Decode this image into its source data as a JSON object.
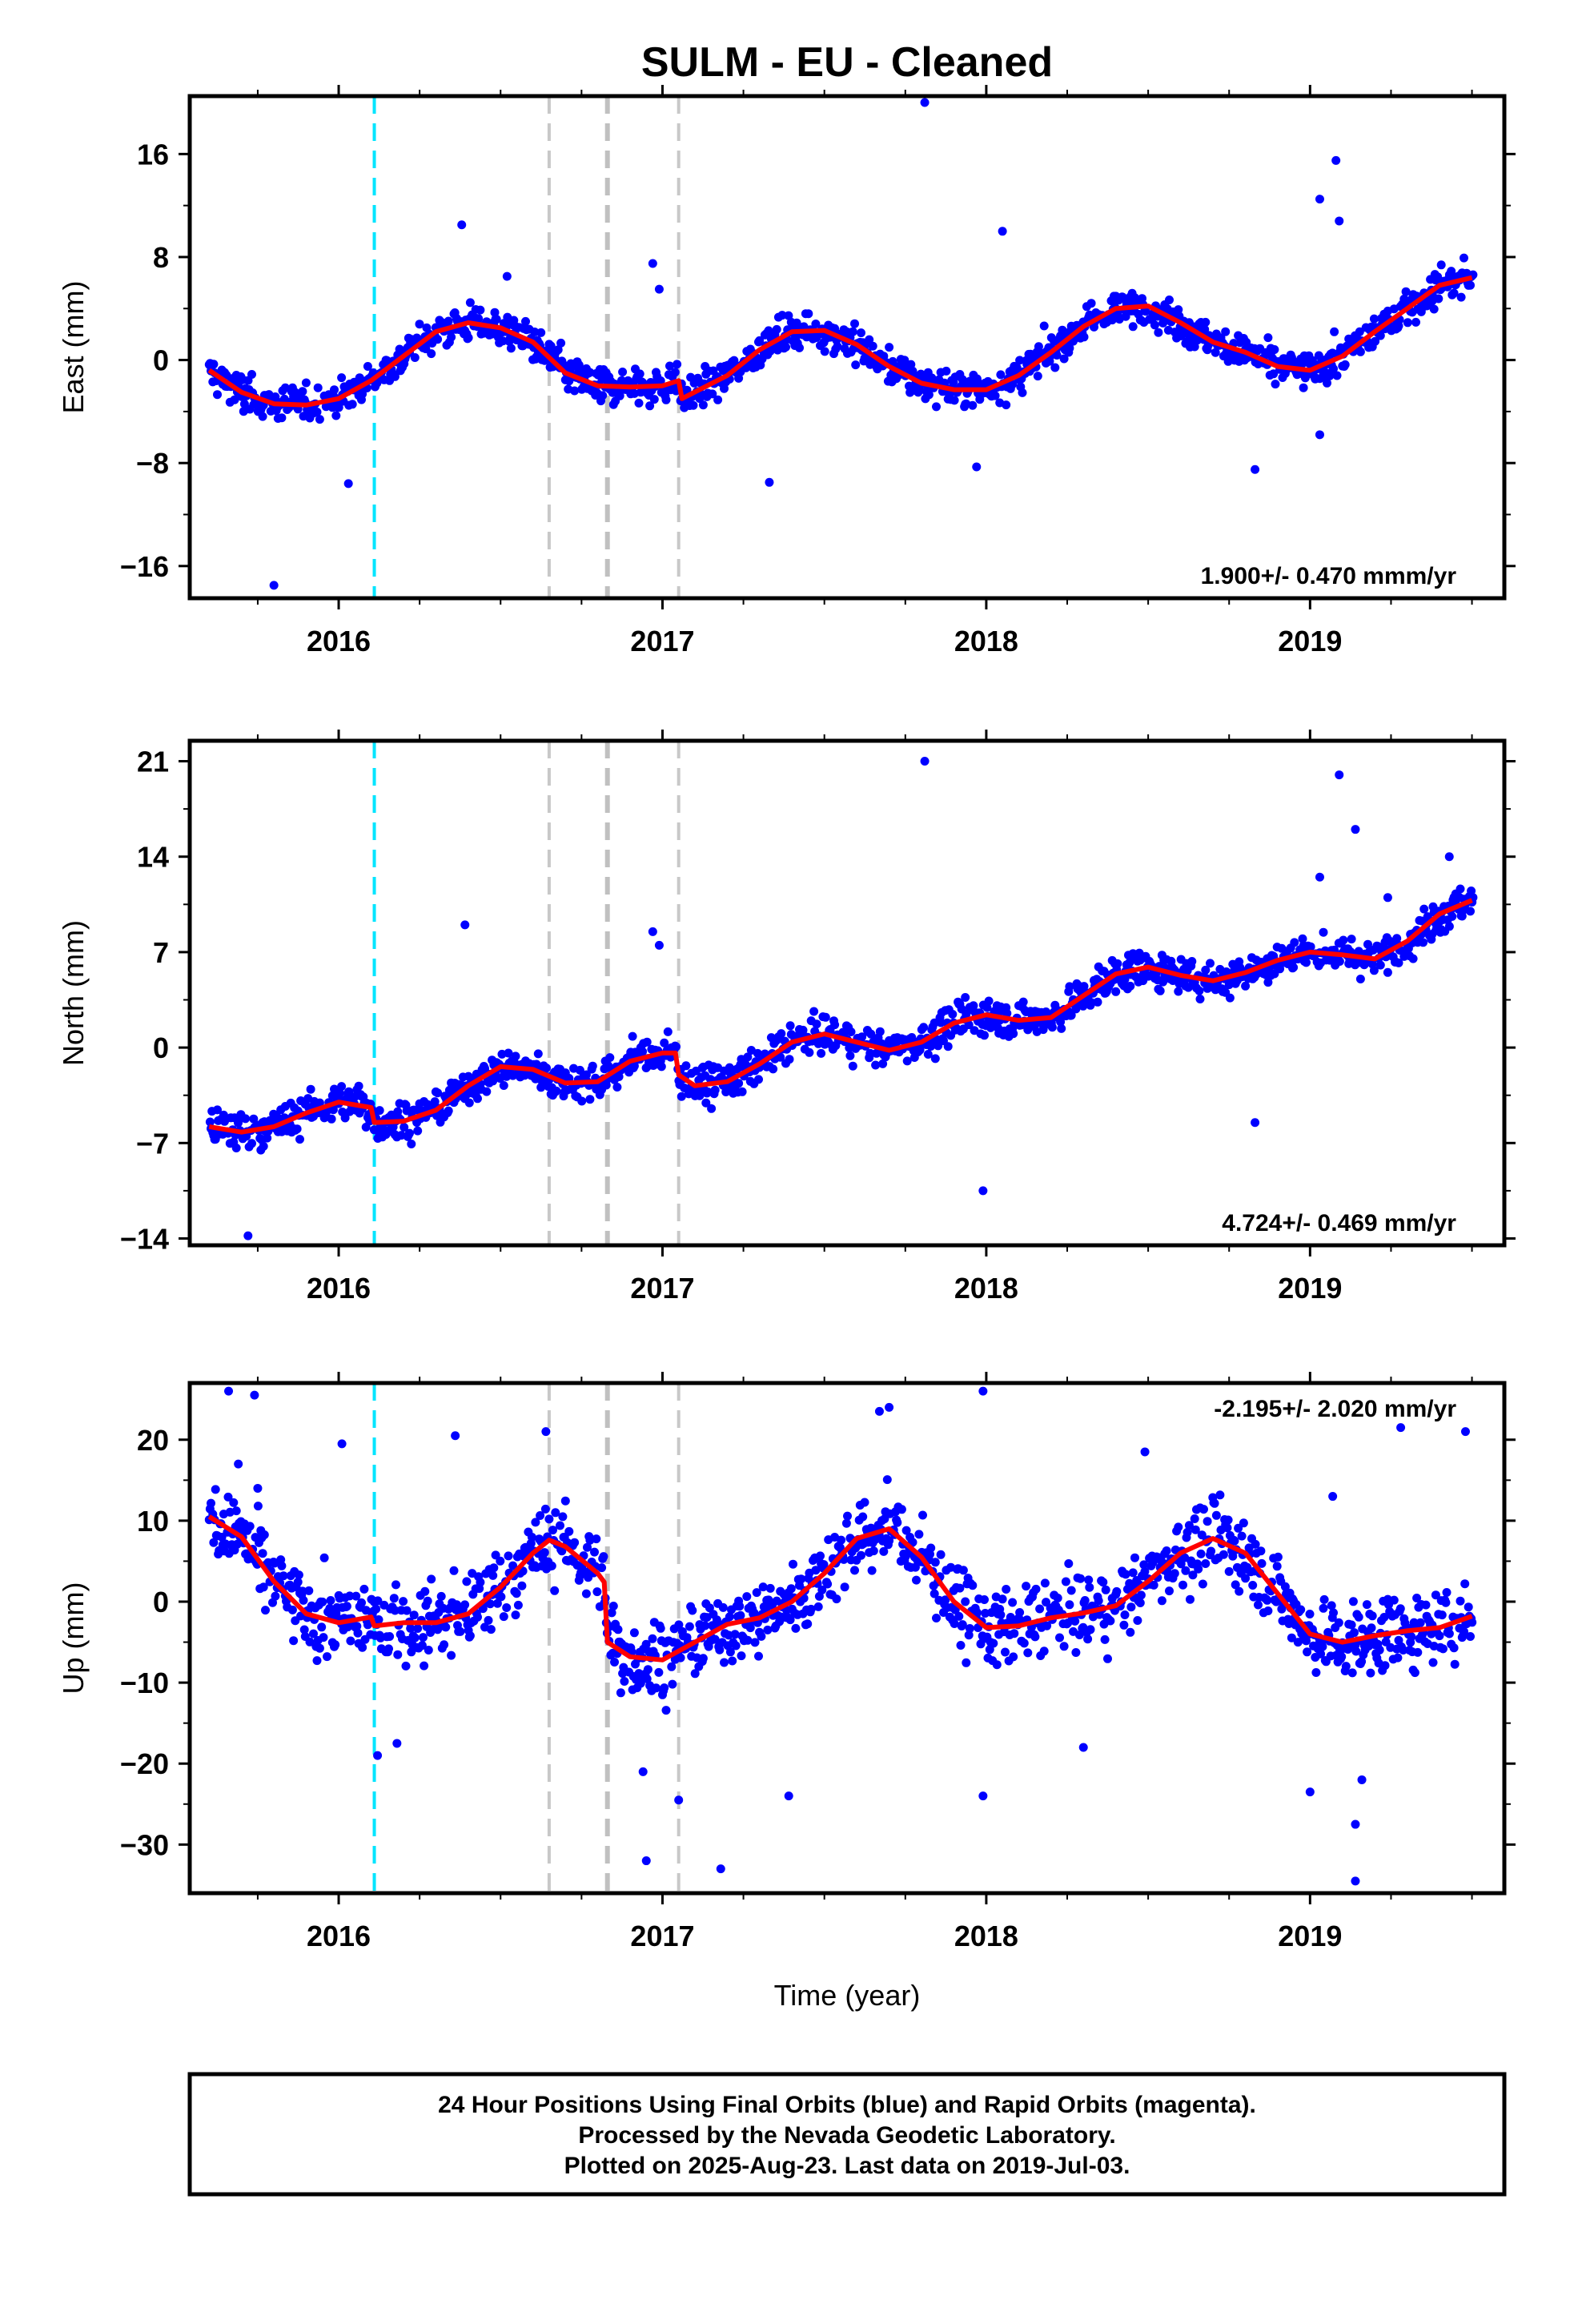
{
  "chart_data": {
    "type": "scatter",
    "title": "SULM  - EU - Cleaned",
    "xlabel": "Time (year)",
    "xlim": [
      2015.54,
      2019.6
    ],
    "xticks": [
      2016,
      2017,
      2018,
      2019
    ],
    "xtick_labels": [
      "2016",
      "2017",
      "2018",
      "2019"
    ],
    "event_lines": [
      {
        "year": 2016.11,
        "color": "#00e5ff"
      },
      {
        "year": 2016.65,
        "color": "#c8c8c8"
      },
      {
        "year": 2016.83,
        "color": "#c0c0c0"
      },
      {
        "year": 2017.05,
        "color": "#c8c8c8"
      }
    ],
    "colors": {
      "observations": "#0000ff",
      "model": "#ff0000"
    },
    "panels": [
      {
        "name": "east",
        "ylabel": "East (mm)",
        "ylim": [
          -18.5,
          20.5
        ],
        "yticks": [
          -16,
          -8,
          0,
          8,
          16
        ],
        "ytick_labels": [
          "−16",
          "−8",
          "0",
          "8",
          "16"
        ],
        "rate_label": "1.900+/- 0.470 mmm/yr",
        "rate_position": "bottom-right",
        "model": {
          "x": [
            2015.6,
            2015.7,
            2015.8,
            2015.9,
            2016.0,
            2016.1,
            2016.2,
            2016.3,
            2016.4,
            2016.5,
            2016.6,
            2016.7,
            2016.8,
            2016.9,
            2017.0,
            2017.05,
            2017.06,
            2017.2,
            2017.3,
            2017.4,
            2017.5,
            2017.6,
            2017.7,
            2017.8,
            2017.9,
            2018.0,
            2018.1,
            2018.2,
            2018.3,
            2018.4,
            2018.5,
            2018.6,
            2018.7,
            2018.8,
            2018.9,
            2019.0,
            2019.1,
            2019.2,
            2019.3,
            2019.4,
            2019.5
          ],
          "y": [
            -0.8,
            -2.5,
            -3.4,
            -3.5,
            -3.0,
            -1.6,
            0.3,
            2.2,
            2.9,
            2.5,
            1.4,
            -1.0,
            -2.0,
            -2.1,
            -2.0,
            -1.6,
            -3.0,
            -1.2,
            0.8,
            2.2,
            2.3,
            1.2,
            -0.5,
            -1.8,
            -2.3,
            -2.3,
            -1.2,
            0.6,
            2.6,
            4.0,
            4.2,
            2.9,
            1.4,
            0.6,
            -0.5,
            -0.8,
            0.3,
            2.2,
            4.0,
            5.8,
            6.4
          ]
        },
        "points": {
          "x": [
            2015.8,
            2016.03,
            2016.38,
            2016.52,
            2016.97,
            2016.99,
            2017.33,
            2017.81,
            2017.97,
            2018.05,
            2018.83,
            2019.03,
            2019.08,
            2019.09,
            2019.03
          ],
          "y": [
            -17.5,
            -9.6,
            10.5,
            6.5,
            7.5,
            5.5,
            -9.5,
            20.0,
            -8.3,
            10.0,
            -8.5,
            12.5,
            15.5,
            10.8,
            -5.8
          ]
        }
      },
      {
        "name": "north",
        "ylabel": "North (mm)",
        "ylim": [
          -14.5,
          22.5
        ],
        "yticks": [
          -14,
          -7,
          0,
          7,
          14,
          21
        ],
        "ytick_labels": [
          "−14",
          "−7",
          "0",
          "7",
          "14",
          "21"
        ],
        "rate_label": "4.724+/- 0.469 mm/yr",
        "rate_position": "bottom-right",
        "model": {
          "x": [
            2015.6,
            2015.7,
            2015.8,
            2015.9,
            2016.0,
            2016.1,
            2016.11,
            2016.2,
            2016.3,
            2016.4,
            2016.5,
            2016.6,
            2016.7,
            2016.8,
            2016.9,
            2017.0,
            2017.04,
            2017.05,
            2017.1,
            2017.2,
            2017.3,
            2017.4,
            2017.5,
            2017.6,
            2017.7,
            2017.8,
            2017.9,
            2018.0,
            2018.1,
            2018.2,
            2018.3,
            2018.4,
            2018.5,
            2018.6,
            2018.7,
            2018.8,
            2018.9,
            2019.0,
            2019.1,
            2019.2,
            2019.3,
            2019.4,
            2019.5
          ],
          "y": [
            -5.8,
            -6.2,
            -5.8,
            -4.8,
            -4.0,
            -4.4,
            -5.5,
            -5.4,
            -4.6,
            -2.8,
            -1.4,
            -1.6,
            -2.6,
            -2.5,
            -1.0,
            -0.4,
            -0.4,
            -2.0,
            -2.8,
            -2.5,
            -1.2,
            0.4,
            1.0,
            0.4,
            -0.2,
            0.4,
            1.8,
            2.4,
            2.0,
            2.2,
            3.8,
            5.4,
            5.9,
            5.3,
            4.9,
            5.5,
            6.4,
            7.0,
            6.8,
            6.5,
            7.8,
            9.8,
            10.8
          ]
        },
        "points": {
          "x": [
            2015.72,
            2016.39,
            2016.97,
            2016.99,
            2017.81,
            2017.99,
            2018.83,
            2019.09,
            2019.14,
            2019.03,
            2019.24,
            2019.43
          ],
          "y": [
            -13.8,
            9.0,
            8.5,
            7.5,
            21.0,
            -10.5,
            -5.5,
            20.0,
            16.0,
            12.5,
            11.0,
            14.0
          ]
        }
      },
      {
        "name": "up",
        "ylabel": "Up (mm)",
        "ylim": [
          -36,
          27
        ],
        "yticks": [
          -30,
          -20,
          -10,
          0,
          10,
          20
        ],
        "ytick_labels": [
          "−30",
          "−20",
          "−10",
          "0",
          "10",
          "20"
        ],
        "rate_label": "-2.195+/- 2.020 mm/yr",
        "rate_position": "top-right",
        "model": {
          "x": [
            2015.6,
            2015.7,
            2015.8,
            2015.9,
            2016.0,
            2016.1,
            2016.11,
            2016.2,
            2016.3,
            2016.4,
            2016.5,
            2016.6,
            2016.65,
            2016.7,
            2016.8,
            2016.82,
            2016.83,
            2016.9,
            2017.0,
            2017.1,
            2017.2,
            2017.3,
            2017.4,
            2017.5,
            2017.6,
            2017.7,
            2017.8,
            2017.9,
            2018.0,
            2018.1,
            2018.2,
            2018.3,
            2018.4,
            2018.5,
            2018.6,
            2018.7,
            2018.8,
            2018.9,
            2019.0,
            2019.1,
            2019.2,
            2019.3,
            2019.4,
            2019.5
          ],
          "y": [
            10.5,
            8.0,
            2.5,
            -1.5,
            -2.6,
            -1.9,
            -3.0,
            -2.6,
            -2.6,
            -1.5,
            1.8,
            6.0,
            7.6,
            6.8,
            3.5,
            2.4,
            -5.0,
            -6.8,
            -7.2,
            -5.0,
            -2.8,
            -2.0,
            0.0,
            3.5,
            7.8,
            9.0,
            5.5,
            0.0,
            -3.2,
            -3.0,
            -2.0,
            -1.4,
            -0.5,
            2.5,
            6.0,
            7.8,
            6.0,
            1.0,
            -4.0,
            -5.0,
            -4.2,
            -3.6,
            -3.2,
            -1.8
          ]
        },
        "points": {
          "x": [
            2015.66,
            2015.69,
            2015.74,
            2015.75,
            2016.01,
            2016.12,
            2016.18,
            2016.36,
            2016.64,
            2016.94,
            2016.95,
            2017.05,
            2017.18,
            2017.39,
            2017.67,
            2017.7,
            2017.99,
            2017.99,
            2018.3,
            2018.49,
            2019.0,
            2019.07,
            2019.14,
            2019.14,
            2019.16,
            2019.28,
            2019.48
          ],
          "y": [
            26.0,
            17.0,
            25.5,
            14.0,
            19.5,
            -19.0,
            -17.5,
            20.5,
            21.0,
            -21.0,
            -32.0,
            -24.5,
            -33.0,
            -24.0,
            23.5,
            24.0,
            26.0,
            -24.0,
            -18.0,
            18.5,
            -23.5,
            13.0,
            -27.5,
            -34.5,
            -22.0,
            21.5,
            21.0
          ]
        }
      }
    ]
  },
  "footer": {
    "line1": "24 Hour Positions Using Final Orbits (blue) and Rapid Orbits (magenta).",
    "line2": "Processed by the Nevada Geodetic Laboratory.",
    "line3": "Plotted on 2025-Aug-23. Last data on 2019-Jul-03."
  }
}
